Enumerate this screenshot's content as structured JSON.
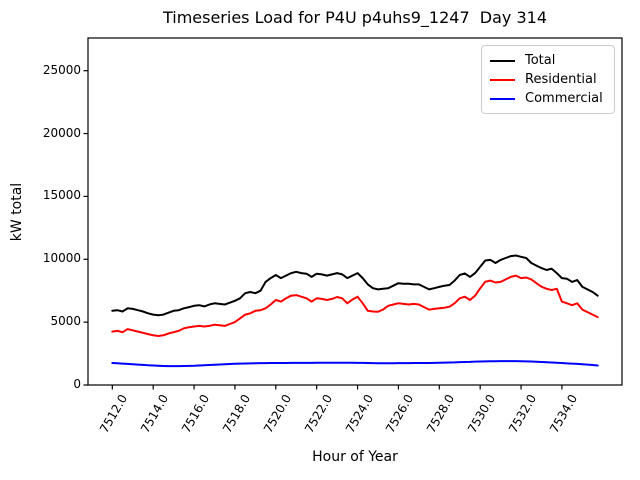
{
  "title": "Timeseries Load for P4U p4uhs9_1247  Day 314",
  "chart_data": {
    "type": "line",
    "title": "Timeseries Load for P4U p4uhs9_1247  Day 314",
    "xlabel": "Hour of Year",
    "ylabel": "kW total",
    "grid": false,
    "legend_position": "upper right",
    "xlim": [
      7510.81,
      7536.94
    ],
    "ylim": [
      0,
      27600
    ],
    "xticks": [
      7512,
      7514,
      7516,
      7518,
      7520,
      7522,
      7524,
      7526,
      7528,
      7530,
      7532,
      7534
    ],
    "xtick_labels": [
      "7512.0",
      "7514.0",
      "7516.0",
      "7518.0",
      "7520.0",
      "7522.0",
      "7524.0",
      "7526.0",
      "7528.0",
      "7530.0",
      "7532.0",
      "7534.0"
    ],
    "yticks": [
      0,
      5000,
      10000,
      15000,
      20000,
      25000
    ],
    "ytick_labels": [
      "0",
      "5000",
      "10000",
      "15000",
      "20000",
      "25000"
    ],
    "x_start": 7512.0,
    "x_step": 0.25,
    "n_points": 96,
    "series": [
      {
        "name": "Total",
        "color": "#000000",
        "values": [
          5900,
          5950,
          5850,
          6100,
          6050,
          5950,
          5850,
          5700,
          5600,
          5550,
          5600,
          5750,
          5900,
          5950,
          6100,
          6200,
          6300,
          6350,
          6250,
          6400,
          6500,
          6450,
          6400,
          6550,
          6700,
          6900,
          7300,
          7400,
          7300,
          7500,
          8200,
          8500,
          8750,
          8500,
          8700,
          8900,
          9000,
          8900,
          8850,
          8600,
          8850,
          8800,
          8700,
          8800,
          8900,
          8800,
          8500,
          8700,
          8900,
          8500,
          8000,
          7700,
          7600,
          7650,
          7700,
          7900,
          8100,
          8050,
          8050,
          8000,
          8000,
          7800,
          7600,
          7700,
          7800,
          7900,
          7950,
          8300,
          8750,
          8880,
          8600,
          8900,
          9400,
          9900,
          9950,
          9700,
          9950,
          10100,
          10250,
          10300,
          10200,
          10100,
          9700,
          9500,
          9300,
          9150,
          9250,
          8900,
          8500,
          8450,
          8200,
          8350,
          7800,
          7600,
          7400,
          7100
        ]
      },
      {
        "name": "Residential",
        "color": "#ff0000",
        "values": [
          4250,
          4300,
          4200,
          4450,
          4350,
          4250,
          4150,
          4050,
          3950,
          3900,
          3950,
          4100,
          4200,
          4300,
          4500,
          4600,
          4650,
          4700,
          4650,
          4700,
          4800,
          4750,
          4700,
          4850,
          5000,
          5300,
          5600,
          5700,
          5900,
          5950,
          6100,
          6400,
          6760,
          6630,
          6900,
          7100,
          7150,
          7025,
          6900,
          6630,
          6900,
          6850,
          6760,
          6850,
          7000,
          6900,
          6500,
          6800,
          7025,
          6500,
          5900,
          5850,
          5830,
          6000,
          6300,
          6400,
          6500,
          6450,
          6400,
          6450,
          6400,
          6200,
          6000,
          6050,
          6100,
          6150,
          6230,
          6500,
          6900,
          7025,
          6760,
          7100,
          7690,
          8220,
          8300,
          8150,
          8200,
          8400,
          8600,
          8700,
          8500,
          8550,
          8400,
          8100,
          7820,
          7650,
          7560,
          7650,
          6630,
          6500,
          6350,
          6500,
          6000,
          5800,
          5600,
          5400
        ]
      },
      {
        "name": "Commercial",
        "color": "#0000ff",
        "values": [
          1750,
          1730,
          1700,
          1680,
          1650,
          1620,
          1600,
          1570,
          1550,
          1530,
          1510,
          1500,
          1500,
          1500,
          1510,
          1520,
          1530,
          1550,
          1570,
          1590,
          1610,
          1630,
          1650,
          1670,
          1690,
          1700,
          1710,
          1720,
          1730,
          1740,
          1740,
          1750,
          1750,
          1750,
          1750,
          1760,
          1760,
          1760,
          1760,
          1760,
          1770,
          1770,
          1770,
          1770,
          1770,
          1770,
          1770,
          1770,
          1760,
          1760,
          1750,
          1740,
          1730,
          1730,
          1730,
          1730,
          1740,
          1740,
          1740,
          1750,
          1750,
          1750,
          1750,
          1760,
          1770,
          1780,
          1790,
          1800,
          1820,
          1830,
          1840,
          1860,
          1870,
          1880,
          1890,
          1890,
          1900,
          1900,
          1900,
          1900,
          1890,
          1880,
          1870,
          1850,
          1830,
          1810,
          1790,
          1770,
          1750,
          1720,
          1700,
          1680,
          1650,
          1620,
          1590,
          1550
        ]
      }
    ]
  }
}
